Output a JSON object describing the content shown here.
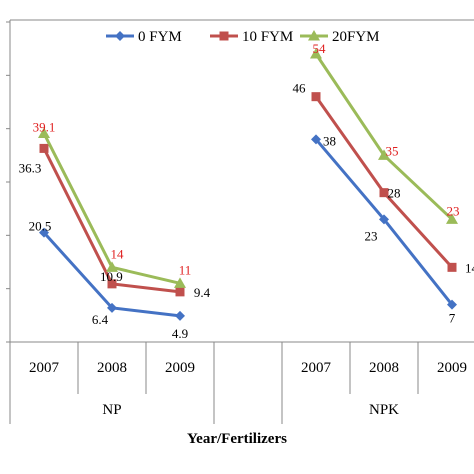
{
  "chart_data": {
    "type": "line",
    "xlabel": "Year/Fertilizers",
    "ylabel": "",
    "groups": [
      {
        "label": "NP",
        "categories": [
          "2007",
          "2008",
          "2009"
        ]
      },
      {
        "label": "",
        "categories": [
          ""
        ]
      },
      {
        "label": "NPK",
        "categories": [
          "2007",
          "2008",
          "2009"
        ]
      }
    ],
    "ylim": [
      0,
      60
    ],
    "legend_position": "top",
    "series": [
      {
        "name": "0 FYM",
        "color": "#4472C4",
        "marker": "diamond",
        "label_color": "#000000",
        "segments": [
          [
            20.5,
            6.4,
            4.9
          ],
          [
            38,
            23,
            7
          ]
        ],
        "label_texts": [
          [
            "20.5",
            "6.4",
            "4.9"
          ],
          [
            "38",
            "23",
            "7"
          ]
        ]
      },
      {
        "name": "10 FYM",
        "color": "#C0504D",
        "marker": "square",
        "label_color": "#000000",
        "segments": [
          [
            36.3,
            10.9,
            9.4
          ],
          [
            46,
            28,
            14
          ]
        ],
        "label_texts": [
          [
            "36.3",
            "10.9",
            "9.4"
          ],
          [
            "46",
            "28",
            "14"
          ]
        ]
      },
      {
        "name": "20FYM",
        "color": "#9BBB59",
        "marker": "triangle",
        "label_color": "#E02020",
        "segments": [
          [
            39.1,
            14,
            11
          ],
          [
            54,
            35,
            23
          ]
        ],
        "label_texts": [
          [
            "39.1",
            "14",
            "11"
          ],
          [
            "54",
            "35",
            "23"
          ]
        ]
      }
    ]
  }
}
